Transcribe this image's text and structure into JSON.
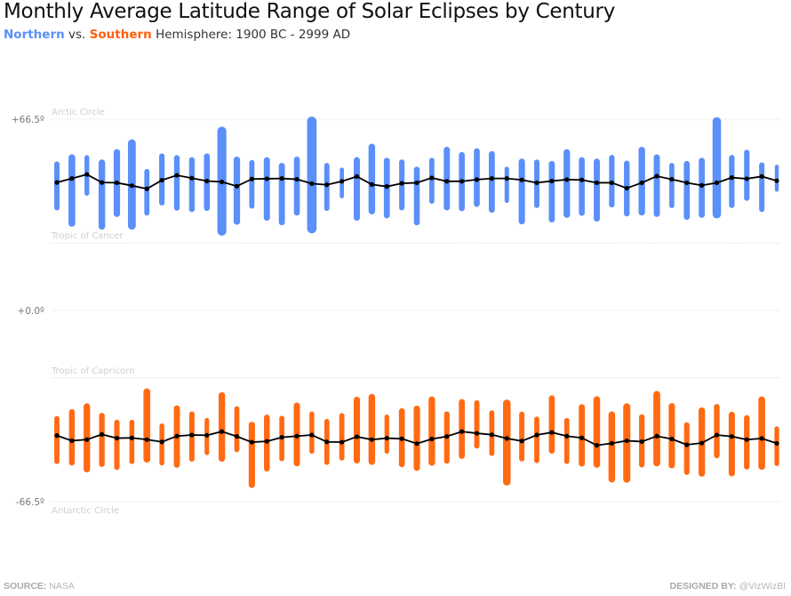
{
  "title": "Monthly Average Latitude Range of Solar Eclipses by Century",
  "subtitle": {
    "north": "Northern",
    "vs": "vs.",
    "south": "Southern",
    "rest": "Hemisphere: 1900 BC - 2999 AD"
  },
  "footer": {
    "source_label": "SOURCE:",
    "source": "NASA",
    "designer_label": "DESIGNED BY:",
    "designer": "@VizWizBI"
  },
  "colors": {
    "northern": "#5b8ff9",
    "southern": "#ff6a13",
    "average_line": "#000000"
  },
  "chart_data": {
    "type": "range-bar with line",
    "ylim": [
      -66.5,
      66.5
    ],
    "y_ticks": [
      {
        "value": 66.5,
        "label": "+66.5º"
      },
      {
        "value": 0,
        "label": "+0.0º"
      },
      {
        "value": -66.5,
        "label": "-66.5º"
      }
    ],
    "reference_lines": [
      {
        "value": 66.5,
        "label": "Arctic Circle"
      },
      {
        "value": 23.44,
        "label": "Tropic of Cancer"
      },
      {
        "value": 0,
        "label": ""
      },
      {
        "value": -23.44,
        "label": "Tropic of Capricorn"
      },
      {
        "value": -66.5,
        "label": "Antarctic Circle"
      }
    ],
    "grid": true,
    "series": [
      {
        "name": "Northern",
        "max": [
          51.8,
          54.3,
          54.0,
          52.5,
          56.1,
          59.5,
          49.2,
          54.6,
          54.0,
          53.3,
          54.6,
          63.9,
          53.5,
          52.3,
          53.3,
          51.3,
          53.5,
          67.4,
          51.3,
          49.7,
          53.3,
          58.0,
          53.1,
          52.5,
          50.0,
          53.1,
          56.9,
          55.1,
          56.4,
          55.4,
          50.0,
          52.8,
          52.5,
          52.0,
          56.1,
          53.3,
          52.8,
          54.1,
          52.1,
          56.9,
          54.3,
          51.3,
          52.0,
          53.1,
          67.2,
          54.1,
          55.9,
          51.5,
          50.7
        ],
        "min": [
          34.8,
          29.1,
          39.9,
          28.1,
          32.5,
          28.1,
          33.0,
          36.5,
          34.7,
          34.2,
          34.6,
          26.0,
          29.8,
          35.4,
          31.2,
          29.6,
          33.0,
          26.8,
          34.6,
          39.0,
          31.2,
          33.4,
          32.0,
          34.8,
          29.6,
          37.1,
          34.8,
          34.5,
          36.0,
          34.0,
          37.4,
          29.9,
          35.6,
          30.6,
          32.2,
          32.9,
          30.9,
          35.8,
          32.7,
          33.0,
          32.5,
          35.6,
          31.5,
          32.2,
          32.0,
          35.6,
          38.1,
          34.2,
          41.3
        ],
        "avg": [
          44.5,
          45.9,
          47.3,
          44.5,
          44.4,
          43.4,
          42.3,
          45.3,
          47.0,
          46.0,
          45.0,
          44.7,
          43.2,
          45.7,
          45.8,
          45.9,
          45.6,
          44.1,
          43.7,
          44.9,
          46.6,
          43.8,
          43.1,
          44.2,
          44.4,
          46.1,
          44.9,
          44.9,
          45.5,
          45.9,
          45.9,
          45.4,
          44.4,
          45.0,
          45.5,
          45.4,
          44.4,
          44.4,
          42.5,
          44.4,
          46.7,
          45.6,
          44.4,
          43.5,
          44.4,
          46.2,
          45.8,
          46.6,
          45.1
        ]
      },
      {
        "name": "Southern",
        "max": [
          -36.7,
          -34.3,
          -32.3,
          -35.6,
          -38.0,
          -38.0,
          -27.1,
          -39.3,
          -33.0,
          -35.1,
          -37.4,
          -28.4,
          -33.3,
          -38.7,
          -36.2,
          -36.6,
          -32.0,
          -35.1,
          -37.7,
          -35.7,
          -30.0,
          -29.0,
          -36.2,
          -34.0,
          -33.1,
          -29.9,
          -35.1,
          -30.8,
          -31.2,
          -34.7,
          -31.0,
          -35.2,
          -36.9,
          -29.5,
          -37.4,
          -32.6,
          -29.8,
          -35.1,
          -32.3,
          -36.1,
          -28.0,
          -32.2,
          -38.9,
          -33.7,
          -32.5,
          -35.2,
          -36.4,
          -29.9,
          -40.3
        ],
        "min": [
          -53.4,
          -53.9,
          -56.3,
          -54.4,
          -55.5,
          -53.4,
          -52.9,
          -53.9,
          -54.7,
          -52.6,
          -50.3,
          -52.6,
          -49.3,
          -61.7,
          -56.0,
          -52.4,
          -54.2,
          -49.8,
          -53.7,
          -52.2,
          -53.2,
          -53.7,
          -49.8,
          -54.5,
          -55.8,
          -54.0,
          -53.3,
          -51.6,
          -48.0,
          -50.6,
          -60.9,
          -52.5,
          -53.1,
          -49.8,
          -53.4,
          -54.3,
          -54.7,
          -59.8,
          -59.9,
          -54.6,
          -54.2,
          -54.9,
          -57.2,
          -57.8,
          -51.4,
          -57.7,
          -55.3,
          -55.4,
          -54.1
        ],
        "avg": [
          -43.5,
          -45.3,
          -44.9,
          -43.1,
          -44.4,
          -44.3,
          -44.9,
          -45.7,
          -43.7,
          -43.3,
          -43.4,
          -42.1,
          -43.8,
          -45.8,
          -45.5,
          -44.1,
          -43.7,
          -43.3,
          -45.7,
          -45.8,
          -43.9,
          -44.9,
          -44.4,
          -44.6,
          -46.3,
          -44.7,
          -43.8,
          -42.1,
          -42.7,
          -43.2,
          -44.5,
          -45.4,
          -43.3,
          -42.4,
          -43.7,
          -44.3,
          -46.9,
          -46.2,
          -45.3,
          -45.6,
          -43.7,
          -44.7,
          -46.7,
          -46.1,
          -43.3,
          -43.8,
          -44.9,
          -44.5,
          -46.2
        ]
      }
    ]
  }
}
